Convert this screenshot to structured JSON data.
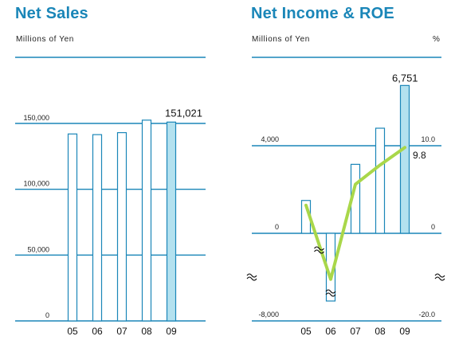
{
  "colors": {
    "accent": "#1a86b8",
    "bar_fill_highlight": "#b3e1ef",
    "bar_fill": "#ffffff",
    "roe_line": "#a9d74a"
  },
  "chart_data": [
    {
      "type": "bar",
      "title": "Net Sales",
      "ylabel": "Millions of Yen",
      "categories": [
        "05",
        "06",
        "07",
        "08",
        "09"
      ],
      "values": [
        142000,
        141500,
        143000,
        152500,
        151021
      ],
      "ylim": [
        0,
        150000
      ],
      "yticks": [
        0,
        50000,
        100000,
        150000
      ],
      "ytick_labels": [
        "0",
        "50,000",
        "100,000",
        "150,000"
      ],
      "highlight_index": 4,
      "data_label": "151,021",
      "grid": true
    },
    {
      "type": "bar+line",
      "title": "Net Income & ROE",
      "ylabel_left": "Millions of Yen",
      "ylabel_right": "%",
      "categories": [
        "05",
        "06",
        "07",
        "08",
        "09"
      ],
      "series": [
        {
          "type": "bar",
          "values": [
            1500,
            -4200,
            3150,
            4800,
            6751
          ],
          "axis": "left"
        },
        {
          "type": "line",
          "values": [
            3.2,
            -10.5,
            5.6,
            7.8,
            9.8
          ],
          "axis": "right"
        }
      ],
      "left_ticks": [
        -8000,
        0,
        4000
      ],
      "left_tick_labels": [
        "-8,000",
        "0",
        "4,000"
      ],
      "right_ticks": [
        -20,
        0,
        10
      ],
      "right_tick_labels": [
        "-20.0",
        "0",
        "10.0"
      ],
      "axis_break": true,
      "highlight_index": 4,
      "data_labels": {
        "bar_last": "6,751",
        "line_last": "9.8"
      },
      "grid": true
    }
  ]
}
